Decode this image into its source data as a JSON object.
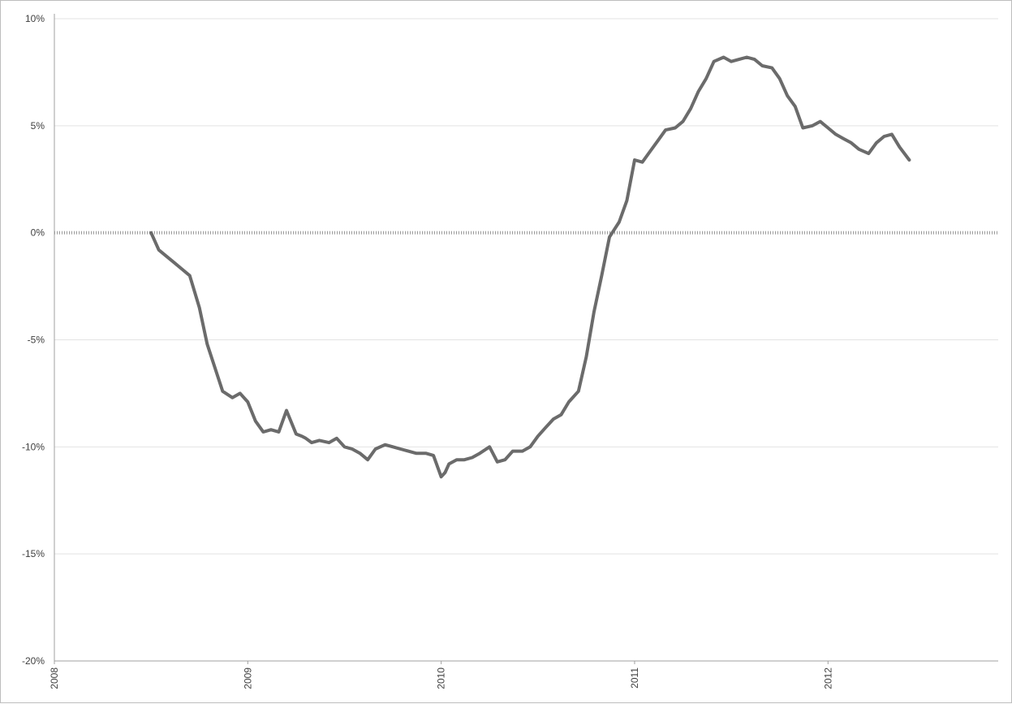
{
  "chart_data": {
    "type": "line",
    "title": "",
    "xlabel": "",
    "ylabel": "",
    "x_tick_labels": [
      "2008",
      "2009",
      "2010",
      "2011",
      "2012"
    ],
    "y_tick_labels": [
      "10%",
      "5%",
      "0%",
      "-5%",
      "-10%",
      "-15%",
      "-20%"
    ],
    "xlim": [
      2008.0,
      2012.88
    ],
    "ylim": [
      -20,
      10
    ],
    "y_ticks": [
      10,
      5,
      0,
      -5,
      -10,
      -15,
      -20
    ],
    "x_ticks": [
      2008,
      2009,
      2010,
      2011,
      2012
    ],
    "grid": true,
    "legend": "none",
    "series_color": "#6b6b6b",
    "series": [
      {
        "x": [
          2008.5,
          2008.54,
          2008.58,
          2008.62,
          2008.66,
          2008.7,
          2008.75,
          2008.79,
          2008.83,
          2008.87,
          2008.92,
          2008.96,
          2009.0,
          2009.04,
          2009.08,
          2009.12,
          2009.16,
          2009.2,
          2009.25,
          2009.28,
          2009.3,
          2009.33,
          2009.37,
          2009.42,
          2009.46,
          2009.5,
          2009.54,
          2009.58,
          2009.62,
          2009.66,
          2009.71,
          2009.75,
          2009.79,
          2009.83,
          2009.87,
          2009.92,
          2009.96,
          2010.0,
          2010.02,
          2010.04,
          2010.08,
          2010.12,
          2010.16,
          2010.2,
          2010.25,
          2010.29,
          2010.33,
          2010.37,
          2010.42,
          2010.46,
          2010.5,
          2010.54,
          2010.58,
          2010.62,
          2010.66,
          2010.71,
          2010.75,
          2010.79,
          2010.83,
          2010.87,
          2010.92,
          2010.96,
          2011.0,
          2011.04,
          2011.08,
          2011.12,
          2011.16,
          2011.21,
          2011.25,
          2011.29,
          2011.33,
          2011.37,
          2011.41,
          2011.46,
          2011.5,
          2011.54,
          2011.58,
          2011.62,
          2011.66,
          2011.71,
          2011.75,
          2011.79,
          2011.83,
          2011.87,
          2011.92,
          2011.96,
          2012.0,
          2012.04,
          2012.08,
          2012.12,
          2012.16,
          2012.21,
          2012.25,
          2012.29,
          2012.33,
          2012.37,
          2012.42
        ],
        "y": [
          0.0,
          -0.8,
          -1.1,
          -1.4,
          -1.7,
          -2.0,
          -3.5,
          -5.2,
          -6.3,
          -7.4,
          -7.7,
          -7.5,
          -7.9,
          -8.8,
          -9.3,
          -9.2,
          -9.3,
          -8.3,
          -9.4,
          -9.5,
          -9.6,
          -9.8,
          -9.7,
          -9.8,
          -9.6,
          -10.0,
          -10.1,
          -10.3,
          -10.6,
          -10.1,
          -9.9,
          -10.0,
          -10.1,
          -10.2,
          -10.3,
          -10.3,
          -10.4,
          -11.4,
          -11.2,
          -10.8,
          -10.6,
          -10.6,
          -10.5,
          -10.3,
          -10.0,
          -10.7,
          -10.6,
          -10.2,
          -10.2,
          -10.0,
          -9.5,
          -9.1,
          -8.7,
          -8.5,
          -7.9,
          -7.4,
          -5.8,
          -3.7,
          -2.0,
          -0.2,
          0.5,
          1.5,
          3.4,
          3.3,
          3.8,
          4.3,
          4.8,
          4.9,
          5.2,
          5.8,
          6.6,
          7.2,
          8.0,
          8.2,
          8.0,
          8.1,
          8.2,
          8.1,
          7.8,
          7.7,
          7.2,
          6.4,
          5.9,
          4.9,
          5.0,
          5.2,
          4.9,
          4.6,
          4.4,
          4.2,
          3.9,
          3.7,
          4.2,
          4.5,
          4.6,
          4.0,
          3.4
        ]
      }
    ]
  }
}
